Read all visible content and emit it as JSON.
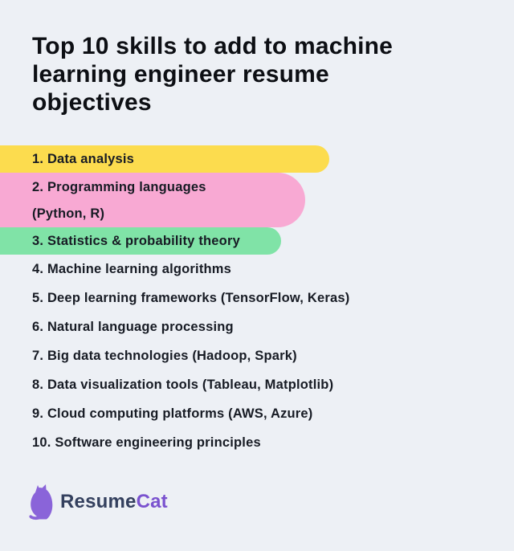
{
  "title": {
    "text": "Top 10 skills to add to machine learning engineer resume objectives",
    "lines": [
      "Top 10 skills to add to machine",
      "learning engineer resume",
      "objectives"
    ]
  },
  "skills": {
    "items": [
      {
        "lines": [
          "1. Data analysis"
        ],
        "highlight": "yellow"
      },
      {
        "lines": [
          "2. Programming languages",
          "(Python, R)"
        ],
        "highlight": "pink"
      },
      {
        "lines": [
          "3. Statistics & probability theory"
        ],
        "highlight": "green"
      },
      {
        "lines": [
          "4. Machine learning algorithms"
        ],
        "highlight": null
      },
      {
        "lines": [
          "5. Deep learning frameworks (TensorFlow, Keras)"
        ],
        "highlight": null
      },
      {
        "lines": [
          "6. Natural language processing"
        ],
        "highlight": null
      },
      {
        "lines": [
          "7. Big data technologies (Hadoop, Spark)"
        ],
        "highlight": null
      },
      {
        "lines": [
          "8. Data visualization tools (Tableau, Matplotlib)"
        ],
        "highlight": null
      },
      {
        "lines": [
          "9. Cloud computing platforms (AWS, Azure)"
        ],
        "highlight": null
      },
      {
        "lines": [
          "10. Software engineering principles"
        ],
        "highlight": null
      }
    ],
    "highlight_colors": {
      "yellow": "#FCDC4E",
      "pink": "#F8A9D3",
      "green": "#80E3A7"
    }
  },
  "logo": {
    "brand_primary": "Resume",
    "brand_accent": "Cat",
    "icon": "cat-icon",
    "primary_color": "#34405E",
    "accent_color": "#7A52CF",
    "icon_color": "#8A64D9"
  },
  "colors": {
    "background": "#EDF0F5",
    "title_text": "#0D0F14",
    "item_text": "#171B24"
  }
}
